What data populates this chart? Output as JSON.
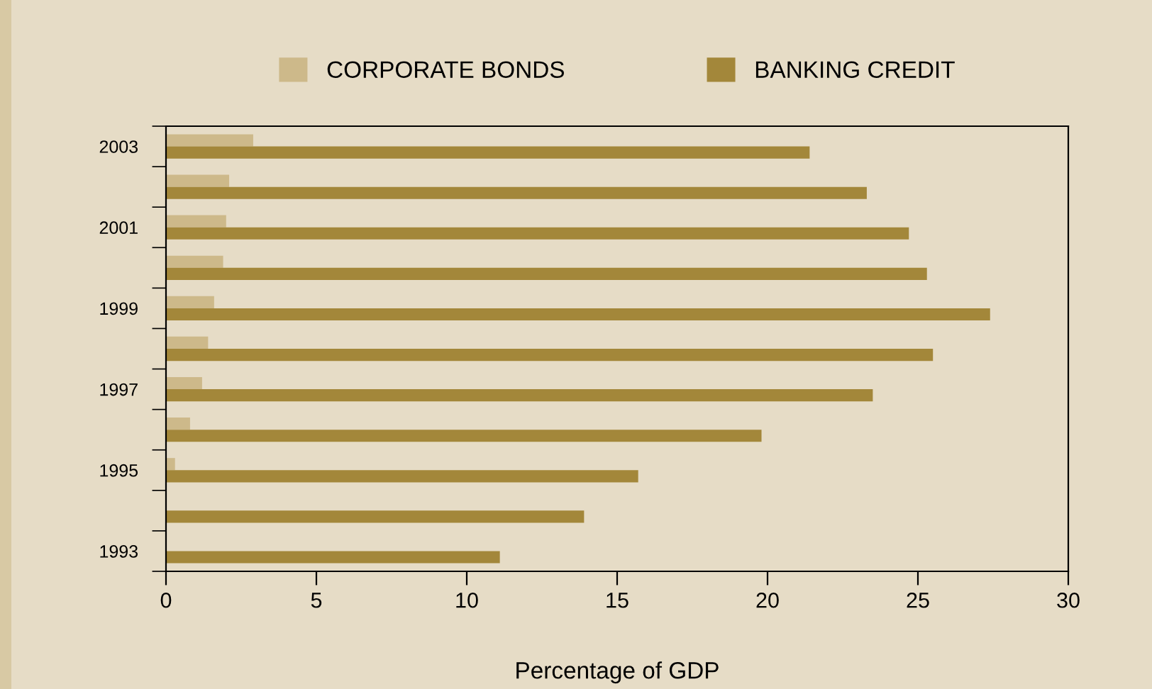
{
  "chart_data": {
    "type": "bar",
    "orientation": "horizontal",
    "xlabel": "Percentage of GDP",
    "categories": [
      "2003",
      null,
      "2001",
      null,
      "1999",
      null,
      "1997",
      null,
      "1995",
      null,
      "1993"
    ],
    "series": [
      {
        "name": "CORPORATE BONDS",
        "color": "#cdb98a",
        "values": [
          2.9,
          2.1,
          2.0,
          1.9,
          1.6,
          1.4,
          1.2,
          0.8,
          0.3,
          null,
          null
        ]
      },
      {
        "name": "BANKING CREDIT",
        "color": "#a3873a",
        "values": [
          21.4,
          23.3,
          24.7,
          25.3,
          27.4,
          25.5,
          23.5,
          19.8,
          15.7,
          13.9,
          11.1
        ]
      }
    ],
    "xlim": [
      0,
      30
    ],
    "xticks": [
      0,
      5,
      10,
      15,
      20,
      25,
      30
    ],
    "grid": false,
    "legend": "top"
  }
}
